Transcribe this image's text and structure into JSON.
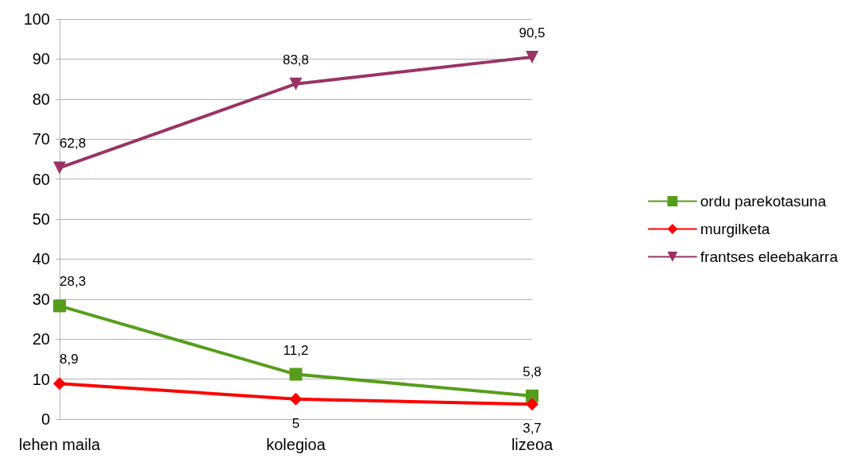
{
  "chart_data": {
    "type": "line",
    "categories": [
      "lehen maila",
      "kolegioa",
      "lizeoa"
    ],
    "series": [
      {
        "name": "ordu parekotasuna",
        "color": "#579d1c",
        "marker": "square",
        "values": [
          28.3,
          11.2,
          5.8
        ],
        "value_labels": [
          "28,3",
          "11,2",
          "5,8"
        ]
      },
      {
        "name": "murgilketa",
        "color": "#ff0000",
        "marker": "diamond",
        "values": [
          8.9,
          5,
          3.7
        ],
        "value_labels": [
          "8,9",
          "5",
          "3,7"
        ]
      },
      {
        "name": "frantses eleebakarra",
        "color": "#993366",
        "marker": "triangle",
        "values": [
          62.8,
          83.8,
          90.5
        ],
        "value_labels": [
          "62,8",
          "83,8",
          "90,5"
        ]
      }
    ],
    "ylim": [
      0,
      100
    ],
    "yticks": [
      0,
      10,
      20,
      30,
      40,
      50,
      60,
      70,
      80,
      90,
      100
    ],
    "grid": "y",
    "legend": "right",
    "line_style": "solid"
  }
}
